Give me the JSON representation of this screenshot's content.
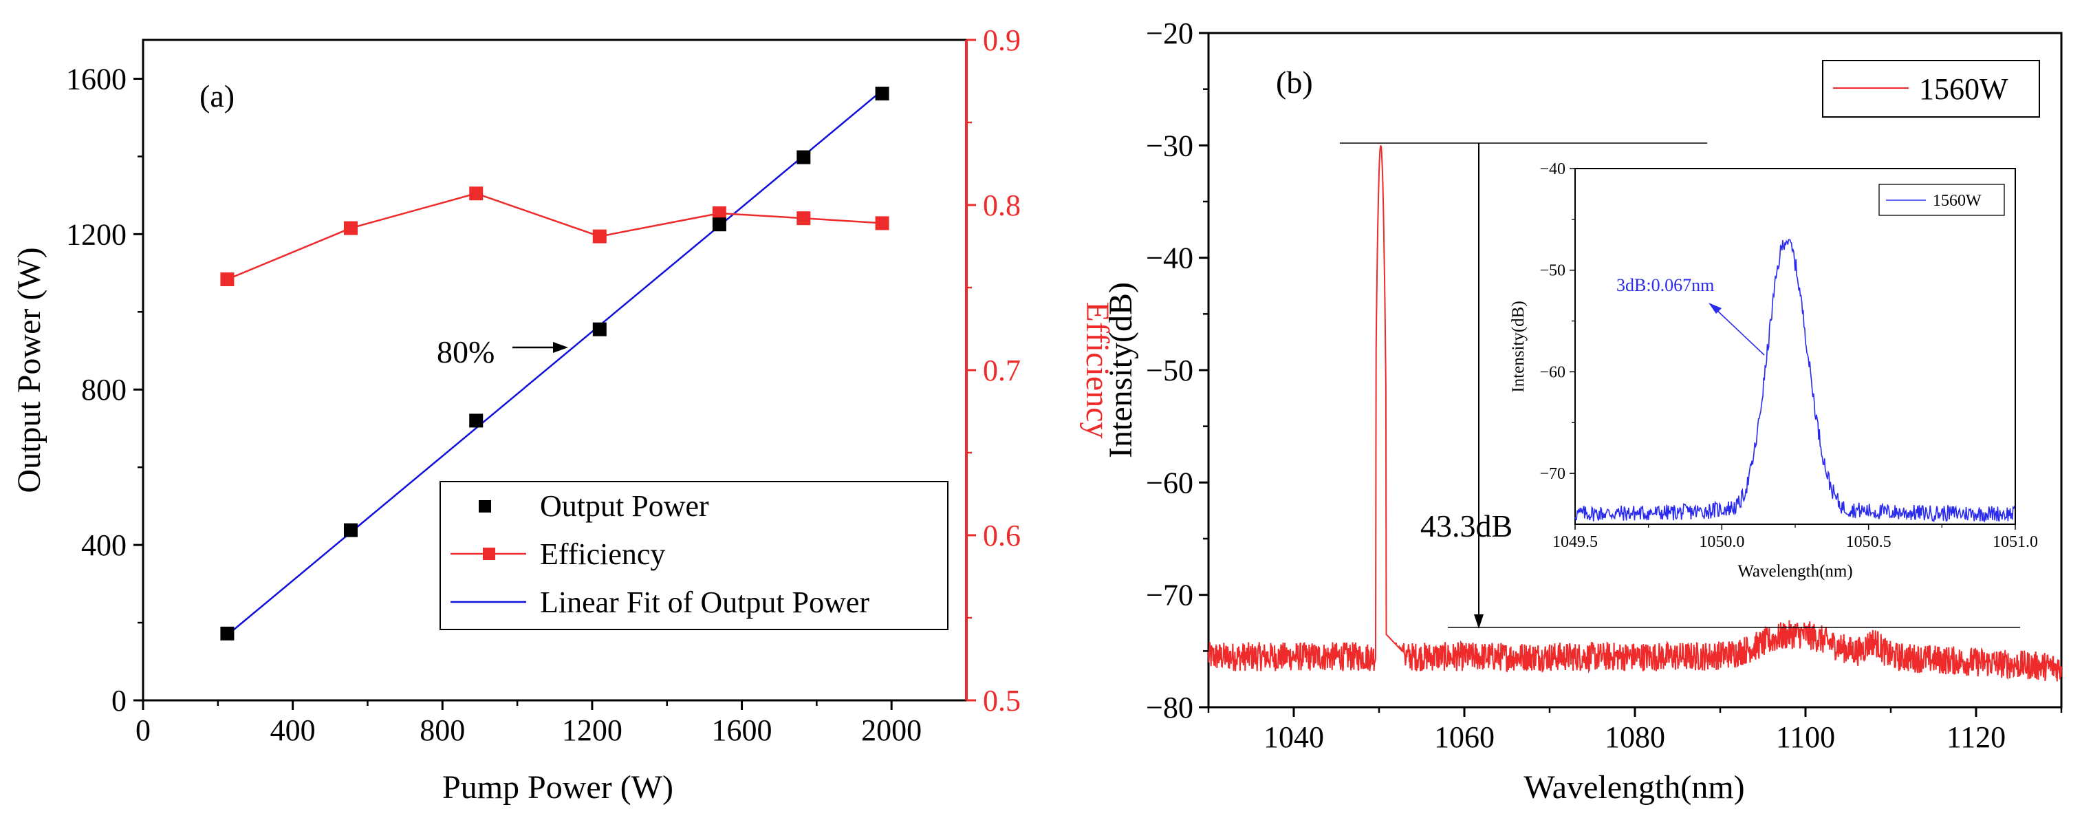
{
  "colors": {
    "black": "#000000",
    "red": "#ee2b2b",
    "blue": "#1010dd",
    "spectrum": "#ef2a2a",
    "inset_blue": "#2a2aee"
  },
  "chart_data": [
    {
      "id": "a",
      "type": "line",
      "panel_label": "(a)",
      "xlabel": "Pump Power (W)",
      "ylabel": "Output Power (W)",
      "y2label": "Efficiency",
      "xlim": [
        0,
        2200
      ],
      "ylim": [
        0,
        1700
      ],
      "y2lim": [
        0.5,
        0.9
      ],
      "xticks": [
        "0",
        "400",
        "800",
        "1200",
        "1600",
        "2000"
      ],
      "yticks": [
        "0",
        "400",
        "800",
        "1200",
        "1600"
      ],
      "y2ticks": [
        "0.5",
        "0.6",
        "0.7",
        "0.8",
        "0.9"
      ],
      "series": [
        {
          "name": "Output Power",
          "axis": "left",
          "style": "scatter",
          "x": [
            225,
            555,
            890,
            1220,
            1540,
            1765,
            1975
          ],
          "y": [
            172,
            438,
            720,
            955,
            1225,
            1398,
            1562
          ]
        },
        {
          "name": "Efficiency",
          "axis": "right",
          "style": "line+marker",
          "x": [
            225,
            555,
            890,
            1220,
            1540,
            1765,
            1975
          ],
          "y": [
            0.755,
            0.786,
            0.807,
            0.781,
            0.795,
            0.792,
            0.789
          ]
        },
        {
          "name": "Linear Fit of Output Power",
          "axis": "left",
          "style": "line",
          "x": [
            225,
            1975
          ],
          "y": [
            168,
            1570
          ]
        }
      ],
      "annotation": {
        "text": "80%",
        "arrow_from": [
          1000,
          910
        ],
        "arrow_to": [
          1140,
          910
        ]
      },
      "legend_position": "bottom-right"
    },
    {
      "id": "b",
      "type": "line",
      "panel_label": "(b)",
      "xlabel": "Wavelength(nm)",
      "ylabel": "Intensity(dB)",
      "xlim": [
        1030,
        1130
      ],
      "ylim": [
        -80,
        -20
      ],
      "xticks": [
        "1040",
        "1060",
        "1080",
        "1100",
        "1120"
      ],
      "yticks": [
        "-80",
        "-70",
        "-60",
        "-50",
        "-40",
        "-30",
        "-20"
      ],
      "series": [
        {
          "name": "1560W",
          "style": "line",
          "peak_wavelength": 1050.2,
          "peak_level": -30,
          "noise_floor": -75.5
        }
      ],
      "annotation": {
        "text": "43.3dB",
        "top_level": -30,
        "bottom_level": -73.3,
        "at_wavelength": 1060
      },
      "legend_position": "top-right"
    },
    {
      "id": "b_inset",
      "type": "line",
      "xlabel": "Wavelength(nm)",
      "ylabel": "Intensity(dB)",
      "xlim": [
        1049.5,
        1051.0
      ],
      "ylim": [
        -75,
        -40
      ],
      "xticks": [
        "1049.5",
        "1050.0",
        "1050.5",
        "1051.0"
      ],
      "yticks": [
        "-70",
        "-60",
        "-50",
        "-40"
      ],
      "series": [
        {
          "name": "1560W",
          "style": "line",
          "peak_wavelength": 1050.22,
          "peak_level": -47,
          "noise_floor": -74
        }
      ],
      "annotation": {
        "text": "3dB:0.067nm"
      },
      "legend_position": "top-right"
    }
  ]
}
